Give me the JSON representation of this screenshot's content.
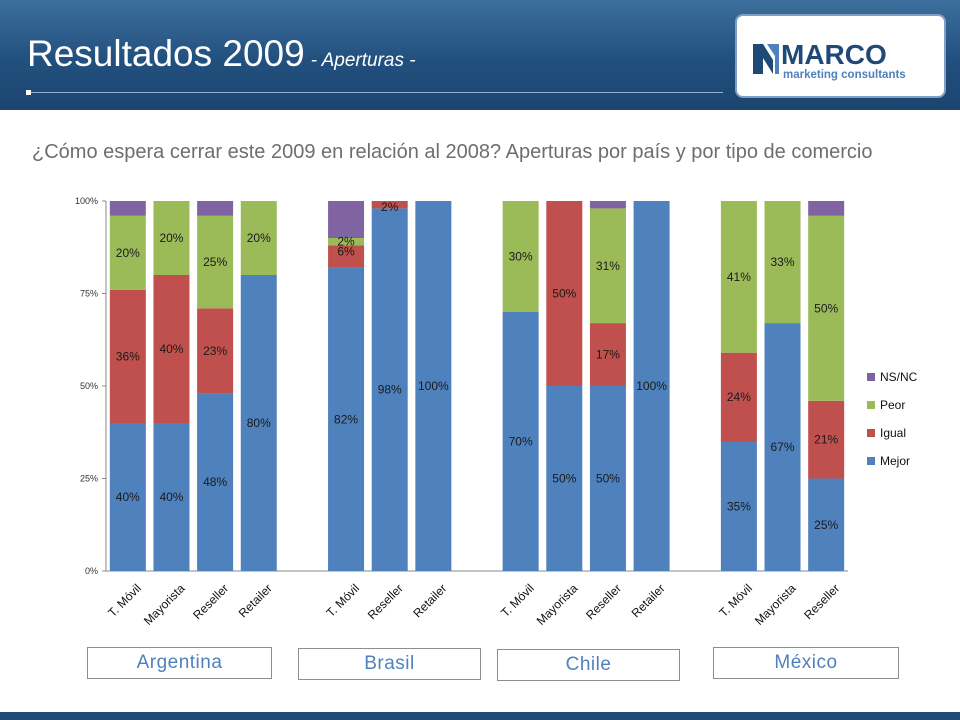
{
  "header": {
    "title": "Resultados 2009",
    "subtitle": "- Aperturas -",
    "logo": {
      "brand": "MARCO",
      "tagline": "marketing consultants"
    }
  },
  "question": "¿Cómo espera cerrar este 2009 en relación al 2008? Aperturas por país y por tipo de comercio",
  "colors": {
    "Mejor": "#4f81bd",
    "Igual": "#c0504d",
    "Peor": "#9bbb59",
    "NS/NC": "#8064a2"
  },
  "chart_data": {
    "type": "bar",
    "stacked": true,
    "ylim": [
      0,
      100
    ],
    "y_ticks": [
      "0%",
      "25%",
      "50%",
      "75%",
      "100%"
    ],
    "legend_position": "right",
    "groups": [
      {
        "name": "Argentina",
        "categories": [
          "T. Móvil",
          "Mayorista",
          "Reseller",
          "Retailer"
        ]
      },
      {
        "name": "Brasil",
        "categories": [
          "T. Móvil",
          "Reseller",
          "Retailer"
        ]
      },
      {
        "name": "Chile",
        "categories": [
          "T. Móvil",
          "Mayorista",
          "Reseller",
          "Retailer"
        ]
      },
      {
        "name": "México",
        "categories": [
          "T. Móvil",
          "Mayorista",
          "Reseller"
        ]
      }
    ],
    "series": [
      {
        "name": "Mejor",
        "values": [
          40,
          40,
          48,
          80,
          82,
          98,
          100,
          70,
          50,
          50,
          100,
          35,
          67,
          25
        ],
        "labels": [
          "40%",
          "40%",
          "48%",
          "80%",
          "82%",
          "98%",
          "100%",
          "70%",
          "50%",
          "50%",
          "100%",
          "35%",
          "67%",
          "25%"
        ]
      },
      {
        "name": "Igual",
        "values": [
          36,
          40,
          23,
          0,
          6,
          2,
          0,
          0,
          50,
          17,
          0,
          24,
          0,
          21
        ],
        "labels": [
          "36%",
          "40%",
          "23%",
          "",
          "6%",
          "2%",
          "",
          "",
          "50%",
          "17%",
          "",
          "24%",
          "",
          "21%"
        ]
      },
      {
        "name": "Peor",
        "values": [
          20,
          20,
          25,
          20,
          2,
          0,
          0,
          30,
          0,
          31,
          0,
          41,
          33,
          50
        ],
        "labels": [
          "20%",
          "20%",
          "25%",
          "20%",
          "2%",
          "",
          "",
          "30%",
          "",
          "31%",
          "",
          "41%",
          "33%",
          "50%"
        ]
      },
      {
        "name": "NS/NC",
        "values": [
          4,
          0,
          4,
          0,
          10,
          0,
          0,
          0,
          0,
          2,
          0,
          0,
          0,
          4
        ],
        "labels": [
          "",
          "",
          "",
          "",
          "",
          "",
          "",
          "",
          "",
          "",
          "",
          "",
          "",
          ""
        ]
      }
    ],
    "legend": [
      "NS/NC",
      "Peor",
      "Igual",
      "Mejor"
    ]
  }
}
